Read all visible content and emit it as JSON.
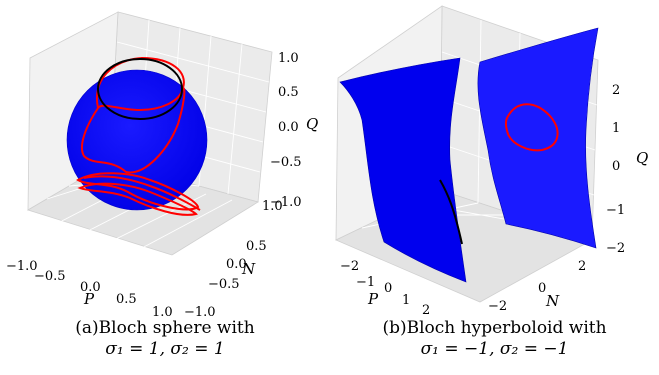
{
  "chart_data": [
    {
      "type": "surface3d",
      "surface": "sphere",
      "xlabel": "P",
      "ylabel": "N",
      "zlabel": "Q",
      "xlim": [
        -1.0,
        1.0
      ],
      "ylim": [
        -1.0,
        1.0
      ],
      "zlim": [
        -1.0,
        1.0
      ],
      "x_ticks": [
        "−1.0",
        "−0.5",
        "0.0",
        "0.5",
        "1.0"
      ],
      "y_ticks": [
        "−1.0",
        "−0.5",
        "0.0",
        "0.5",
        "1.0"
      ],
      "z_ticks": [
        "−1.0",
        "−0.5",
        "0.0",
        "0.5",
        "1.0"
      ],
      "surface_color": "#0000ff",
      "trajectories": [
        {
          "color": "#ff0000",
          "shape": "separatrix loops near z = 0.9 and z = −0.75"
        },
        {
          "color": "#000000",
          "shape": "closed orbit near top of sphere"
        }
      ],
      "grid": true,
      "caption_line1": "(a)Bloch sphere with",
      "caption_line2": "σ₁ = 1, σ₂ = 1"
    },
    {
      "type": "surface3d",
      "surface": "hyperboloid",
      "xlabel": "P",
      "ylabel": "N",
      "zlabel": "Q",
      "xlim": [
        -2.5,
        2.5
      ],
      "ylim": [
        -2.5,
        2.5
      ],
      "zlim": [
        -2,
        2
      ],
      "x_ticks": [
        "−2",
        "−1",
        "0",
        "1",
        "2"
      ],
      "y_ticks": [
        "−2",
        "0",
        "2"
      ],
      "z_ticks": [
        "−2",
        "−1",
        "0",
        "1",
        "2"
      ],
      "surface_color": "#0000ff",
      "trajectories": [
        {
          "color": "#ff0000",
          "shape": "closed orbit on right sheet near Q = 0.5"
        },
        {
          "color": "#000000",
          "shape": "line on left sheet"
        }
      ],
      "grid": true,
      "caption_line1": "(b)Bloch hyperboloid with",
      "caption_line2": "σ₁ = −1, σ₂ = −1"
    }
  ]
}
